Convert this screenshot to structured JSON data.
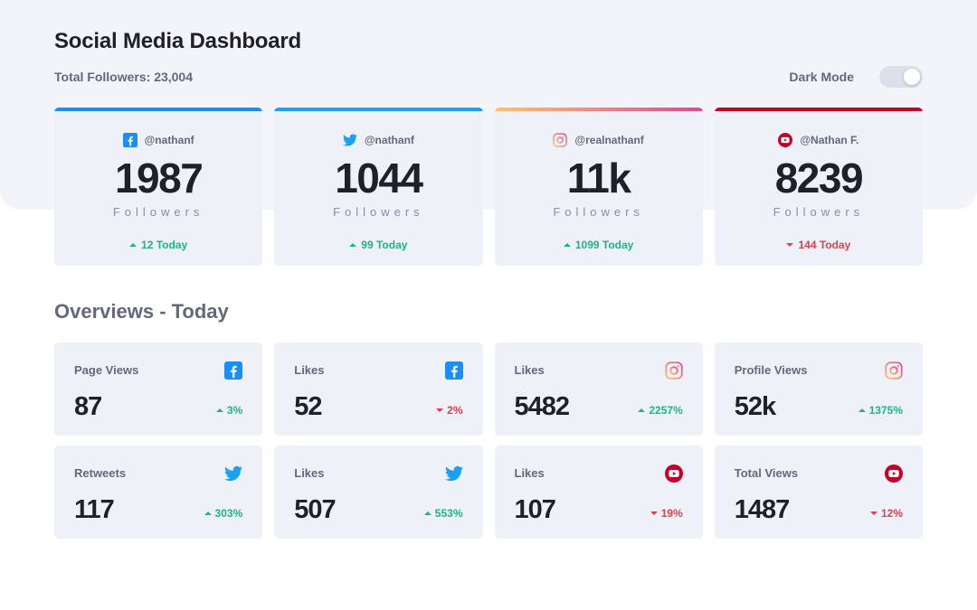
{
  "header": {
    "title": "Social Media Dashboard",
    "total_followers": "Total Followers: 23,004",
    "dark_mode_label": "Dark Mode"
  },
  "follower_cards": [
    {
      "platform": "facebook",
      "handle": "@nathanf",
      "count": "1987",
      "label": "Followers",
      "change": "12 Today",
      "direction": "up"
    },
    {
      "platform": "twitter",
      "handle": "@nathanf",
      "count": "1044",
      "label": "Followers",
      "change": "99 Today",
      "direction": "up"
    },
    {
      "platform": "instagram",
      "handle": "@realnathanf",
      "count": "11k",
      "label": "Followers",
      "change": "1099 Today",
      "direction": "up"
    },
    {
      "platform": "youtube",
      "handle": "@Nathan F.",
      "count": "8239",
      "label": "Followers",
      "change": "144 Today",
      "direction": "down"
    }
  ],
  "overview": {
    "heading": "Overviews - Today",
    "cards": [
      {
        "label": "Page Views",
        "platform": "facebook",
        "value": "87",
        "change": "3%",
        "direction": "up"
      },
      {
        "label": "Likes",
        "platform": "facebook",
        "value": "52",
        "change": "2%",
        "direction": "down"
      },
      {
        "label": "Likes",
        "platform": "instagram",
        "value": "5482",
        "change": "2257%",
        "direction": "up"
      },
      {
        "label": "Profile Views",
        "platform": "instagram",
        "value": "52k",
        "change": "1375%",
        "direction": "up"
      },
      {
        "label": "Retweets",
        "platform": "twitter",
        "value": "117",
        "change": "303%",
        "direction": "up"
      },
      {
        "label": "Likes",
        "platform": "twitter",
        "value": "507",
        "change": "553%",
        "direction": "up"
      },
      {
        "label": "Likes",
        "platform": "youtube",
        "value": "107",
        "change": "19%",
        "direction": "down"
      },
      {
        "label": "Total Views",
        "platform": "youtube",
        "value": "1487",
        "change": "12%",
        "direction": "down"
      }
    ]
  },
  "colors": {
    "facebook": "#198ff5",
    "twitter": "#1ca0f2",
    "instagram_start": "#fdc468",
    "instagram_end": "#df4996",
    "youtube": "#c4032a",
    "positive": "#1db489",
    "negative": "#dc414c"
  }
}
